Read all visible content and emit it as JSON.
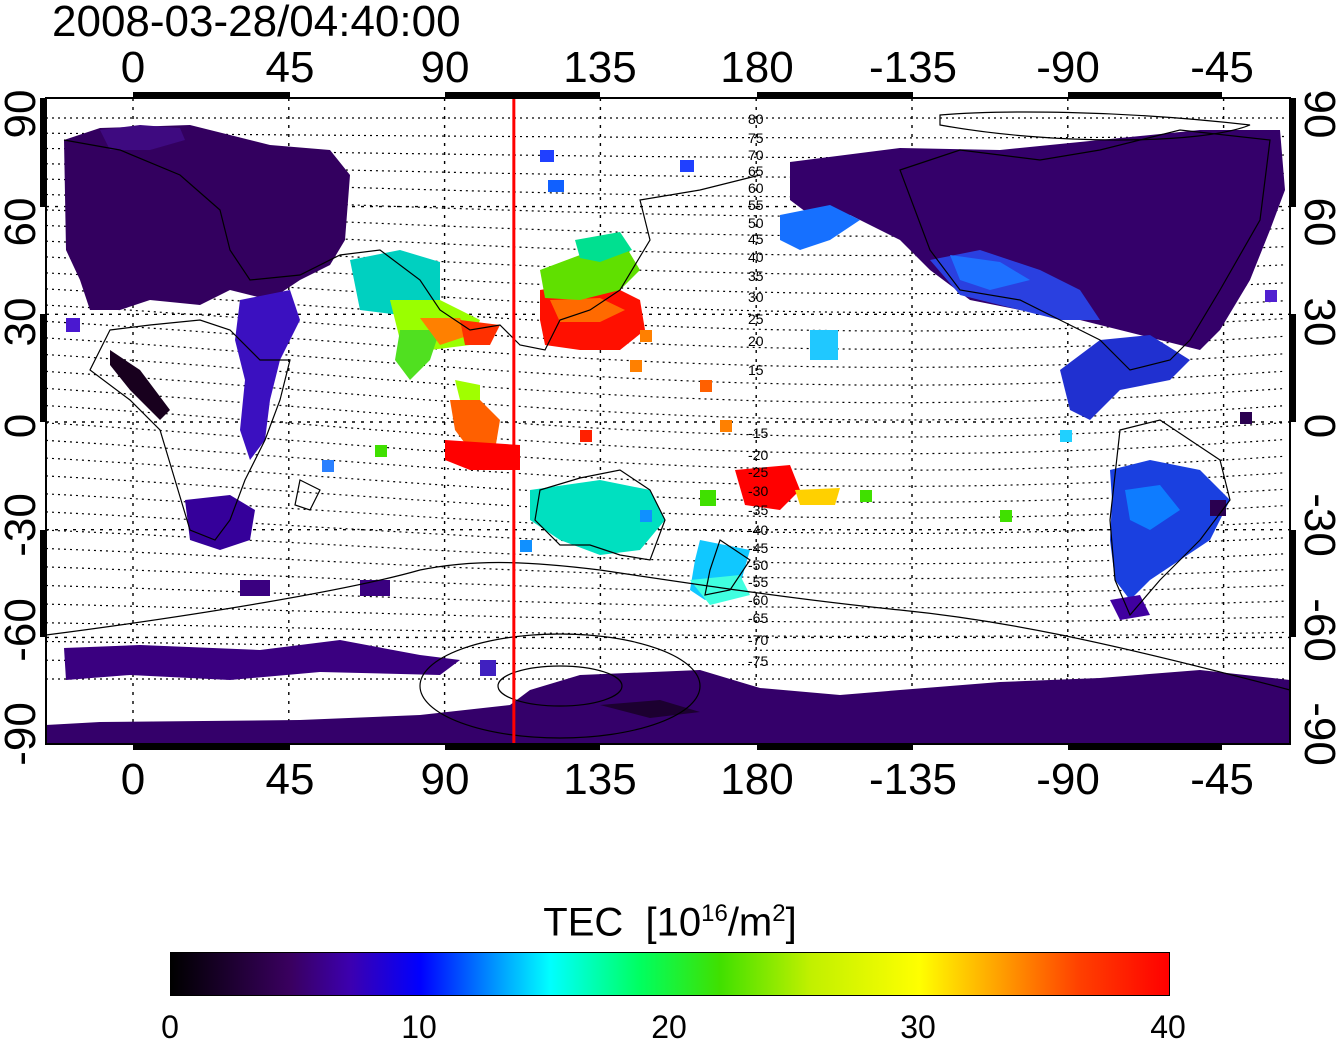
{
  "title": "2008-03-28/04:40:00",
  "lon_ticks": [
    "0",
    "45",
    "90",
    "135",
    "180",
    "-135",
    "-90",
    "-45"
  ],
  "lat_ticks": [
    "90",
    "60",
    "30",
    "0",
    "-30",
    "-60",
    "-90"
  ],
  "contour_labels": [
    "80",
    "75",
    "70",
    "65",
    "60",
    "55",
    "50",
    "45",
    "40",
    "35",
    "30",
    "25",
    "20",
    "15",
    "-15",
    "-20",
    "-25",
    "-30",
    "-35",
    "-40",
    "-45",
    "-50",
    "-55",
    "-60",
    "-65",
    "-70",
    "-75"
  ],
  "colorbar": {
    "title": "TEC",
    "unit_prefix": "[10",
    "unit_exp": "16",
    "unit_mid": "/m",
    "unit_exp2": "2",
    "unit_suffix": "]",
    "ticks": [
      "0",
      "10",
      "20",
      "30",
      "40"
    ],
    "colors": [
      "#000000",
      "#3c00b0",
      "#0000ff",
      "#00ffff",
      "#00ff60",
      "#ffff00",
      "#ff0000"
    ]
  },
  "terminator_longitude": 110,
  "colors": {
    "terminator": "#ff0000",
    "frame": "#000000",
    "low_tec": "#3a0070"
  }
}
